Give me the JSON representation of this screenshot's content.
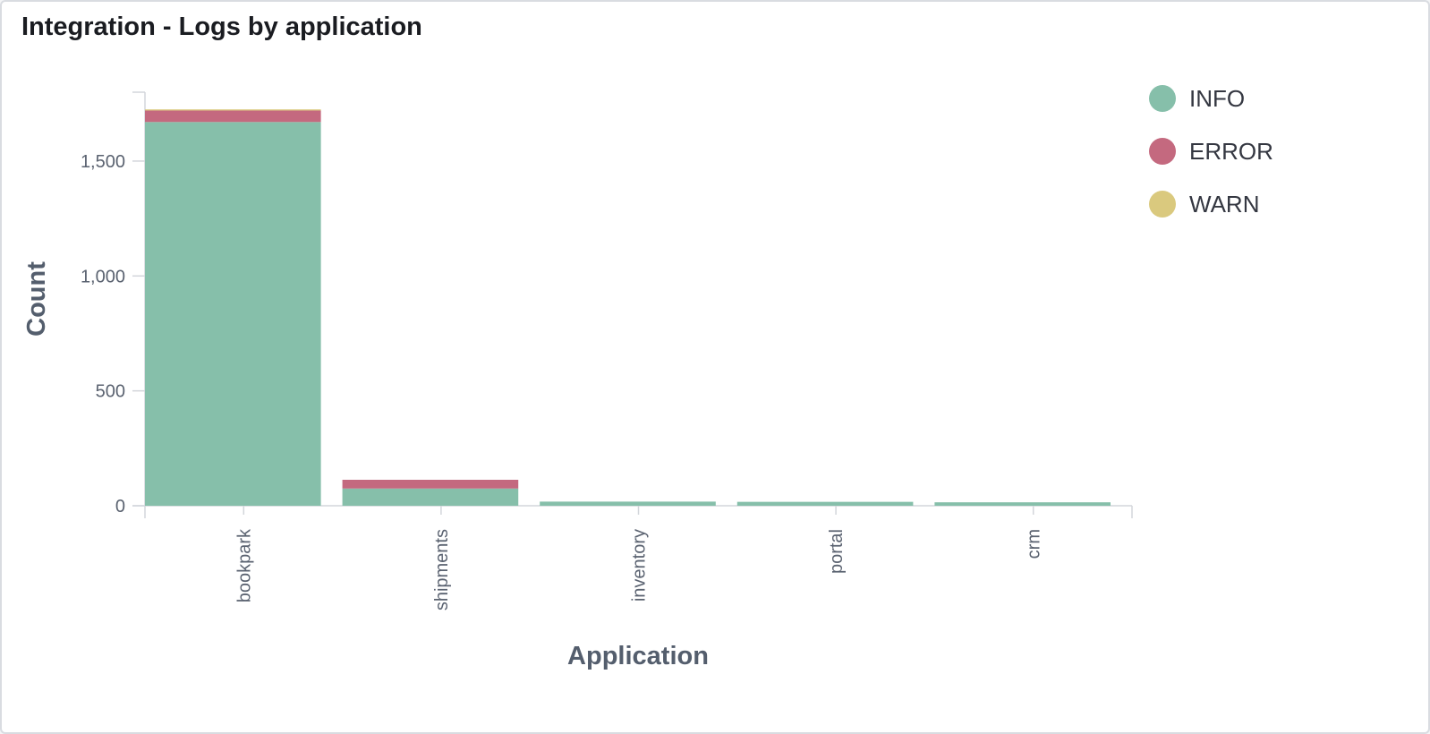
{
  "panel": {
    "title": "Integration - Logs by application"
  },
  "chart_data": {
    "type": "bar",
    "stacked": true,
    "categories": [
      "bookpark",
      "shipments",
      "inventory",
      "portal",
      "crm"
    ],
    "series": [
      {
        "name": "INFO",
        "color": "#86bfaa",
        "values": [
          1670,
          75,
          18,
          17,
          15
        ]
      },
      {
        "name": "ERROR",
        "color": "#c4697f",
        "values": [
          50,
          38,
          0,
          0,
          0
        ]
      },
      {
        "name": "WARN",
        "color": "#dac97e",
        "values": [
          5,
          0,
          0,
          0,
          0
        ]
      }
    ],
    "xlabel": "Application",
    "ylabel": "Count",
    "ylim": [
      0,
      1800
    ],
    "yticks": [
      0,
      500,
      1000,
      1500
    ],
    "ytick_labels": [
      "0",
      "500",
      "1,000",
      "1,500"
    ],
    "grid": false,
    "legend_position": "top-right"
  }
}
